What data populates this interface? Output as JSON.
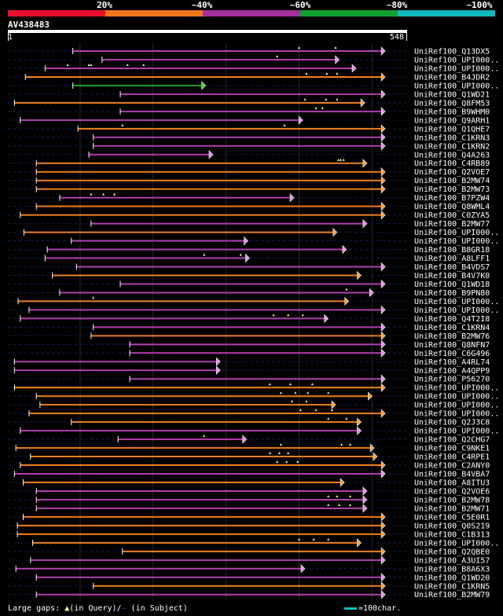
{
  "scale": {
    "labels": [
      "20%",
      "~40%",
      "~60%",
      "~80%",
      "~100%"
    ],
    "colors": [
      "#e8102c",
      "#f07818",
      "#a030a0",
      "#10a030",
      "#10b8c0"
    ]
  },
  "query": {
    "id": "AV438483",
    "start": "1",
    "end": "548",
    "length": 548
  },
  "footer": {
    "gaps_text": "Large gaps: ",
    "triangle": "▲",
    "in_query": "(in Query)/",
    "dash": "—",
    "in_subject": " (in Subject)",
    "legend": "=100char."
  },
  "chart_data": {
    "type": "alignment",
    "query_length": 548,
    "hits": [
      {
        "label": "UniRef100_Q13DX5",
        "start": 90,
        "end": 518,
        "color": "purple",
        "gaps": [
          400,
          450
        ]
      },
      {
        "label": "UniRef100_UPI000..",
        "start": 130,
        "end": 455,
        "color": "purple",
        "gaps": [
          370
        ]
      },
      {
        "label": "UniRef100_UPI000..",
        "start": 52,
        "end": 478,
        "color": "purple",
        "gaps": [
          83,
          112,
          115,
          165,
          187
        ]
      },
      {
        "label": "UniRef100_B4JDR2",
        "start": 25,
        "end": 518,
        "color": "orange",
        "gaps": [
          410,
          438,
          452
        ]
      },
      {
        "label": "UniRef100_UPI000..",
        "start": 90,
        "end": 272,
        "color": "green",
        "gaps": []
      },
      {
        "label": "UniRef100_Q1WD21",
        "start": 155,
        "end": 518,
        "color": "purple",
        "gaps": []
      },
      {
        "label": "UniRef100_Q8FM53",
        "start": 10,
        "end": 490,
        "color": "orange",
        "gaps": [
          408,
          437,
          452
        ]
      },
      {
        "label": "UniRef100_B9WHM0",
        "start": 155,
        "end": 518,
        "color": "purple",
        "gaps": [
          423,
          432
        ]
      },
      {
        "label": "UniRef100_Q9ARH1",
        "start": 18,
        "end": 405,
        "color": "purple",
        "gaps": []
      },
      {
        "label": "UniRef100_Q1QHE7",
        "start": 97,
        "end": 518,
        "color": "orange",
        "gaps": [
          158,
          380
        ]
      },
      {
        "label": "UniRef100_C1KRN3",
        "start": 118,
        "end": 518,
        "color": "purple",
        "gaps": []
      },
      {
        "label": "UniRef100_C1KRN2",
        "start": 118,
        "end": 518,
        "color": "purple",
        "gaps": []
      },
      {
        "label": "UniRef100_Q4A263",
        "start": 112,
        "end": 282,
        "color": "purple",
        "gaps": []
      },
      {
        "label": "UniRef100_C4RB89",
        "start": 40,
        "end": 493,
        "color": "orange",
        "gaps": [
          454,
          457,
          461
        ]
      },
      {
        "label": "UniRef100_Q2VOE7",
        "start": 40,
        "end": 518,
        "color": "orange",
        "gaps": []
      },
      {
        "label": "UniRef100_B2MW74",
        "start": 40,
        "end": 518,
        "color": "orange",
        "gaps": []
      },
      {
        "label": "UniRef100_B2MW73",
        "start": 40,
        "end": 518,
        "color": "orange",
        "gaps": []
      },
      {
        "label": "UniRef100_B7PZW4",
        "start": 72,
        "end": 393,
        "color": "purple",
        "gaps": [
          115,
          132,
          147
        ]
      },
      {
        "label": "UniRef100_Q8WML4",
        "start": 40,
        "end": 518,
        "color": "orange",
        "gaps": []
      },
      {
        "label": "UniRef100_C0ZYA5",
        "start": 18,
        "end": 518,
        "color": "orange",
        "gaps": []
      },
      {
        "label": "UniRef100_B2MW77",
        "start": 115,
        "end": 493,
        "color": "purple",
        "gaps": []
      },
      {
        "label": "UniRef100_UPI000..",
        "start": 23,
        "end": 452,
        "color": "orange",
        "gaps": []
      },
      {
        "label": "UniRef100_UPI000..",
        "start": 88,
        "end": 330,
        "color": "purple",
        "gaps": []
      },
      {
        "label": "UniRef100_B8GR18",
        "start": 55,
        "end": 465,
        "color": "purple",
        "gaps": []
      },
      {
        "label": "UniRef100_A8LFF1",
        "start": 52,
        "end": 332,
        "color": "purple",
        "gaps": [
          270,
          320
        ]
      },
      {
        "label": "UniRef100_B4VDS7",
        "start": 95,
        "end": 518,
        "color": "purple",
        "gaps": []
      },
      {
        "label": "UniRef100_B4V7K0",
        "start": 62,
        "end": 485,
        "color": "orange",
        "gaps": []
      },
      {
        "label": "UniRef100_Q1WD18",
        "start": 155,
        "end": 518,
        "color": "purple",
        "gaps": []
      },
      {
        "label": "UniRef100_B9PN80",
        "start": 72,
        "end": 502,
        "color": "purple",
        "gaps": [
          465
        ]
      },
      {
        "label": "UniRef100_UPI000..",
        "start": 15,
        "end": 468,
        "color": "orange",
        "gaps": [
          118
        ]
      },
      {
        "label": "UniRef100_UPI000..",
        "start": 30,
        "end": 518,
        "color": "purple",
        "gaps": []
      },
      {
        "label": "UniRef100_Q4T2I8",
        "start": 18,
        "end": 440,
        "color": "purple",
        "gaps": [
          365,
          385,
          405
        ]
      },
      {
        "label": "UniRef100_C1KRN4",
        "start": 118,
        "end": 518,
        "color": "purple",
        "gaps": []
      },
      {
        "label": "UniRef100_B2MW76",
        "start": 115,
        "end": 518,
        "color": "orange",
        "gaps": []
      },
      {
        "label": "UniRef100_Q8NFN7",
        "start": 168,
        "end": 518,
        "color": "purple",
        "gaps": []
      },
      {
        "label": "UniRef100_C6G496",
        "start": 168,
        "end": 518,
        "color": "purple",
        "gaps": []
      },
      {
        "label": "UniRef100_A4RL74",
        "start": 10,
        "end": 292,
        "color": "purple",
        "gaps": []
      },
      {
        "label": "UniRef100_A4QPP9",
        "start": 10,
        "end": 292,
        "color": "purple",
        "gaps": []
      },
      {
        "label": "UniRef100_P56270",
        "start": 168,
        "end": 518,
        "color": "purple",
        "gaps": []
      },
      {
        "label": "UniRef100_UPI000..",
        "start": 10,
        "end": 518,
        "color": "orange",
        "gaps": [
          360,
          388,
          418
        ]
      },
      {
        "label": "UniRef100_UPI000..",
        "start": 40,
        "end": 500,
        "color": "orange",
        "gaps": [
          375,
          395,
          412,
          440
        ]
      },
      {
        "label": "UniRef100_UPI000..",
        "start": 45,
        "end": 450,
        "color": "orange",
        "gaps": [
          390,
          410
        ]
      },
      {
        "label": "UniRef100_UPI000..",
        "start": 30,
        "end": 518,
        "color": "orange",
        "gaps": [
          402,
          423,
          445
        ]
      },
      {
        "label": "UniRef100_Q2J3C8",
        "start": 88,
        "end": 485,
        "color": "orange",
        "gaps": [
          440,
          465
        ]
      },
      {
        "label": "UniRef100_UPI000..",
        "start": 18,
        "end": 485,
        "color": "purple",
        "gaps": []
      },
      {
        "label": "UniRef100_Q2CHG7",
        "start": 152,
        "end": 328,
        "color": "purple",
        "gaps": [
          270
        ]
      },
      {
        "label": "UniRef100_C9NKE1",
        "start": 12,
        "end": 503,
        "color": "orange",
        "gaps": [
          375,
          458,
          470
        ]
      },
      {
        "label": "UniRef100_C4RPE1",
        "start": 32,
        "end": 507,
        "color": "orange",
        "gaps": [
          360,
          373,
          385
        ]
      },
      {
        "label": "UniRef100_C2ANY0",
        "start": 18,
        "end": 518,
        "color": "orange",
        "gaps": [
          370,
          383,
          398
        ]
      },
      {
        "label": "UniRef100_B4VBA7",
        "start": 10,
        "end": 518,
        "color": "purple",
        "gaps": []
      },
      {
        "label": "UniRef100_A8ITU3",
        "start": 22,
        "end": 462,
        "color": "orange",
        "gaps": []
      },
      {
        "label": "UniRef100_Q2VOE6",
        "start": 40,
        "end": 493,
        "color": "purple",
        "gaps": []
      },
      {
        "label": "UniRef100_B2MW78",
        "start": 40,
        "end": 493,
        "color": "purple",
        "gaps": [
          440,
          452,
          470
        ]
      },
      {
        "label": "UniRef100_B2MW71",
        "start": 40,
        "end": 493,
        "color": "purple",
        "gaps": [
          440,
          455,
          470
        ]
      },
      {
        "label": "UniRef100_C5E0R1",
        "start": 22,
        "end": 518,
        "color": "orange",
        "gaps": []
      },
      {
        "label": "UniRef100_Q0S219",
        "start": 14,
        "end": 518,
        "color": "orange",
        "gaps": []
      },
      {
        "label": "UniRef100_C1B313",
        "start": 14,
        "end": 518,
        "color": "orange",
        "gaps": []
      },
      {
        "label": "UniRef100_UPI000..",
        "start": 35,
        "end": 485,
        "color": "orange",
        "gaps": [
          400,
          420,
          440
        ]
      },
      {
        "label": "UniRef100_Q2QBE0",
        "start": 158,
        "end": 518,
        "color": "orange",
        "gaps": []
      },
      {
        "label": "UniRef100_A3UI57",
        "start": 32,
        "end": 518,
        "color": "purple",
        "gaps": []
      },
      {
        "label": "UniRef100_B8A6X3",
        "start": 12,
        "end": 408,
        "color": "purple",
        "gaps": []
      },
      {
        "label": "UniRef100_Q1WD20",
        "start": 40,
        "end": 518,
        "color": "purple",
        "gaps": []
      },
      {
        "label": "UniRef100_C1KRN5",
        "start": 118,
        "end": 518,
        "color": "orange",
        "gaps": []
      },
      {
        "label": "UniRef100_B2MW79",
        "start": 40,
        "end": 518,
        "color": "purple",
        "gaps": []
      }
    ]
  }
}
